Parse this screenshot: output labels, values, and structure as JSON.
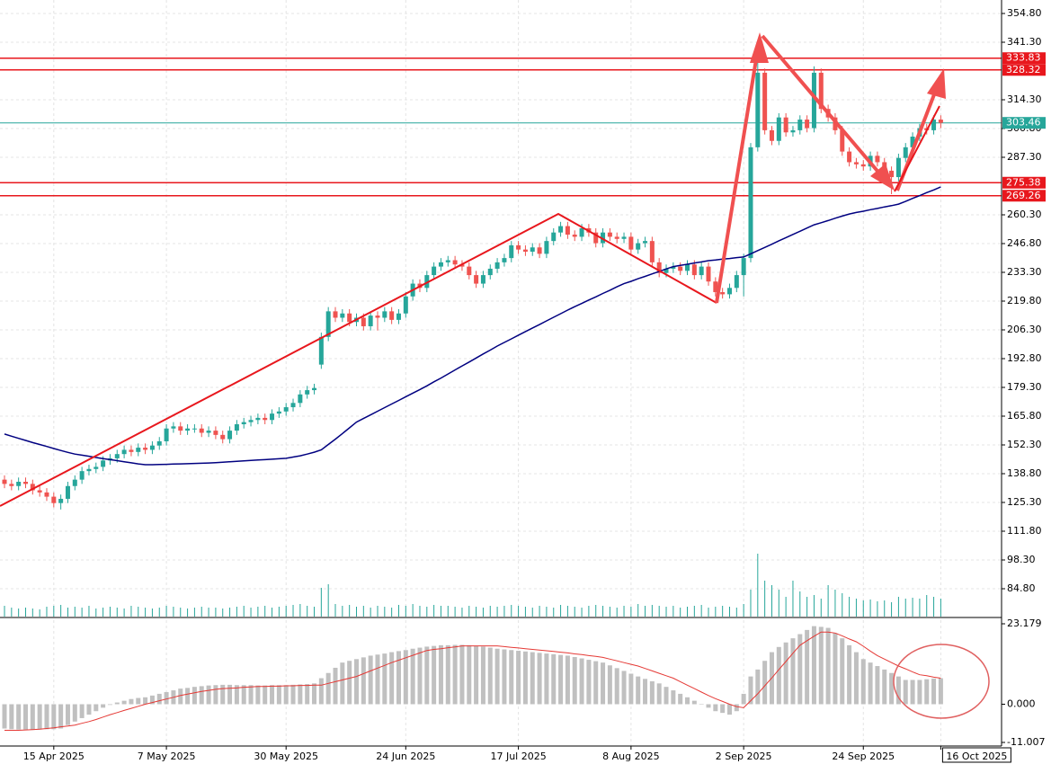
{
  "chart_data": {
    "type": "candlestick",
    "categories": [
      null,
      null,
      null,
      null,
      null,
      null,
      null,
      "15 Apr 2025",
      null,
      null,
      null,
      null,
      null,
      null,
      null,
      null,
      null,
      null,
      null,
      null,
      null,
      null,
      null,
      "7 May 2025",
      null,
      null,
      null,
      null,
      null,
      null,
      null,
      null,
      null,
      null,
      null,
      null,
      null,
      null,
      null,
      null,
      "30 May 2025",
      null,
      null,
      null,
      null,
      null,
      null,
      null,
      null,
      null,
      null,
      null,
      null,
      null,
      null,
      null,
      null,
      "24 Jun 2025",
      null,
      null,
      null,
      null,
      null,
      null,
      null,
      null,
      null,
      null,
      null,
      null,
      null,
      null,
      null,
      "17 Jul 2025",
      null,
      null,
      null,
      null,
      null,
      null,
      null,
      null,
      null,
      null,
      null,
      null,
      null,
      null,
      null,
      "8 Aug 2025",
      null,
      null,
      null,
      null,
      null,
      null,
      null,
      null,
      null,
      null,
      null,
      null,
      null,
      null,
      null,
      "2 Sep 2025",
      null,
      null,
      null,
      null,
      null,
      null,
      null,
      null,
      null,
      null,
      null,
      null,
      null,
      null,
      null,
      null,
      "24 Sep 2025",
      null,
      null,
      null,
      null,
      null,
      null,
      null,
      null,
      null,
      null,
      "16 Oct 2025"
    ],
    "open": [
      136,
      134,
      133,
      135,
      134,
      131,
      130,
      128,
      125,
      127,
      133,
      136,
      140,
      141,
      142,
      145,
      146,
      148,
      150,
      149,
      151,
      150,
      152,
      154,
      160,
      161,
      159,
      160,
      160,
      158,
      159,
      157,
      155,
      159,
      162,
      163,
      164,
      165,
      164,
      167,
      168,
      170,
      172,
      176,
      178,
      190,
      203,
      215,
      212,
      214,
      210,
      212,
      208,
      213,
      212,
      215,
      211,
      214,
      222,
      228,
      226,
      232,
      236,
      238,
      239,
      237,
      236,
      232,
      228,
      232,
      235,
      238,
      240,
      246,
      244,
      243,
      245,
      242,
      248,
      252,
      255,
      251,
      250,
      254,
      252,
      247,
      252,
      250,
      249,
      250,
      244,
      247,
      248,
      238,
      233,
      235,
      236,
      234,
      237,
      232,
      236,
      229,
      224,
      223,
      226,
      232,
      240,
      292,
      327,
      300,
      295,
      306,
      299,
      300,
      305,
      301,
      327,
      310,
      306,
      300,
      290,
      285,
      284,
      283,
      288,
      285,
      281,
      278,
      287,
      292,
      297,
      301,
      300,
      305
    ],
    "high": [
      138,
      136,
      137,
      137,
      136,
      133,
      132,
      130,
      129,
      135,
      138,
      142,
      143,
      144,
      147,
      148,
      150,
      152,
      152,
      153,
      153,
      154,
      156,
      162,
      163,
      163,
      162,
      162,
      162,
      161,
      161,
      159,
      161,
      164,
      165,
      166,
      167,
      167,
      169,
      170,
      172,
      174,
      178,
      180,
      181,
      205,
      217,
      217,
      216,
      216,
      214,
      214,
      215,
      215,
      217,
      217,
      216,
      224,
      230,
      230,
      234,
      238,
      240,
      241,
      241,
      239,
      238,
      234,
      234,
      237,
      240,
      242,
      248,
      248,
      246,
      247,
      247,
      250,
      254,
      257,
      257,
      253,
      256,
      256,
      254,
      254,
      254,
      252,
      252,
      252,
      249,
      250,
      250,
      240,
      237,
      238,
      238,
      239,
      239,
      238,
      238,
      231,
      226,
      228,
      234,
      242,
      294,
      342,
      329,
      302,
      308,
      308,
      302,
      307,
      307,
      330,
      329,
      312,
      308,
      302,
      292,
      287,
      286,
      290,
      290,
      287,
      283,
      289,
      294,
      299,
      303,
      303,
      307,
      307
    ],
    "low": [
      132,
      131,
      131,
      132,
      129,
      128,
      126,
      123,
      122,
      125,
      131,
      134,
      138,
      139,
      140,
      143,
      144,
      146,
      147,
      147,
      148,
      148,
      150,
      152,
      158,
      157,
      157,
      158,
      156,
      156,
      155,
      153,
      153,
      157,
      160,
      161,
      162,
      162,
      162,
      165,
      166,
      168,
      170,
      174,
      176,
      188,
      201,
      210,
      210,
      208,
      208,
      206,
      206,
      206,
      210,
      209,
      209,
      212,
      220,
      224,
      224,
      230,
      234,
      236,
      235,
      234,
      230,
      226,
      226,
      230,
      233,
      236,
      238,
      242,
      241,
      241,
      240,
      240,
      246,
      250,
      249,
      248,
      248,
      250,
      245,
      245,
      248,
      247,
      247,
      242,
      242,
      245,
      236,
      231,
      231,
      233,
      232,
      232,
      230,
      230,
      227,
      222,
      221,
      221,
      224,
      222,
      238,
      290,
      298,
      293,
      293,
      297,
      297,
      298,
      299,
      299,
      308,
      304,
      298,
      288,
      283,
      282,
      281,
      281,
      283,
      279,
      270,
      276,
      285,
      290,
      295,
      298,
      298,
      301
    ],
    "close": [
      134,
      133,
      135,
      134,
      131,
      130,
      128,
      125,
      127,
      133,
      136,
      140,
      141,
      142,
      145,
      146,
      148,
      150,
      149,
      151,
      150,
      152,
      154,
      160,
      161,
      159,
      160,
      160,
      158,
      159,
      157,
      155,
      159,
      162,
      163,
      164,
      165,
      164,
      167,
      168,
      170,
      172,
      176,
      178,
      179,
      203,
      215,
      212,
      214,
      210,
      212,
      208,
      213,
      212,
      215,
      211,
      214,
      222,
      228,
      226,
      232,
      236,
      238,
      239,
      237,
      236,
      232,
      228,
      232,
      235,
      238,
      240,
      246,
      244,
      243,
      245,
      242,
      248,
      252,
      255,
      251,
      250,
      254,
      252,
      247,
      252,
      250,
      249,
      250,
      244,
      247,
      248,
      238,
      233,
      235,
      236,
      234,
      237,
      232,
      236,
      229,
      224,
      223,
      226,
      232,
      240,
      292,
      327,
      300,
      295,
      306,
      299,
      300,
      305,
      301,
      327,
      310,
      306,
      300,
      290,
      285,
      284,
      283,
      288,
      285,
      281,
      278,
      287,
      292,
      297,
      301,
      300,
      305,
      303.46
    ],
    "up_color": "#26a69a",
    "down_color": "#ef5350",
    "ylim": [
      84.8,
      354.8
    ],
    "yticks": [
      {
        "value": 354.8,
        "label": "354.80"
      },
      {
        "value": 341.3,
        "label": "341.30"
      },
      {
        "value": 314.3,
        "label": "314.30"
      },
      {
        "value": 300.8,
        "label": "300.80"
      },
      {
        "value": 287.3,
        "label": "287.30"
      },
      {
        "value": 260.3,
        "label": "260.30"
      },
      {
        "value": 246.8,
        "label": "246.80"
      },
      {
        "value": 233.3,
        "label": "233.30"
      },
      {
        "value": 219.8,
        "label": "219.80"
      },
      {
        "value": 206.3,
        "label": "206.30"
      },
      {
        "value": 192.8,
        "label": "192.80"
      },
      {
        "value": 179.3,
        "label": "179.30"
      },
      {
        "value": 165.8,
        "label": "165.80"
      },
      {
        "value": 152.3,
        "label": "152.30"
      },
      {
        "value": 138.8,
        "label": "138.80"
      },
      {
        "value": 125.3,
        "label": "125.30"
      },
      {
        "value": 111.8,
        "label": "111.80"
      },
      {
        "value": 98.3,
        "label": "98.30"
      },
      {
        "value": 84.8,
        "label": "84.80"
      }
    ],
    "grid": true,
    "levels": [
      {
        "value": 333.83,
        "color": "#e8171d"
      },
      {
        "value": 328.32,
        "color": "#e8171d"
      },
      {
        "value": 303.46,
        "color": "#26a69a"
      },
      {
        "value": 275.38,
        "color": "#e8171d"
      },
      {
        "value": 269.26,
        "color": "#e8171d"
      }
    ],
    "volume": {
      "color": "#26a69a",
      "values": [
        12,
        10,
        9,
        10,
        9,
        8,
        11,
        12,
        13,
        10,
        11,
        10,
        12,
        9,
        10,
        11,
        10,
        9,
        12,
        11,
        10,
        9,
        10,
        12,
        11,
        10,
        9,
        10,
        11,
        10,
        10,
        9,
        10,
        11,
        12,
        10,
        11,
        12,
        10,
        11,
        12,
        13,
        14,
        12,
        11,
        32,
        36,
        14,
        12,
        13,
        11,
        12,
        10,
        12,
        11,
        10,
        13,
        12,
        14,
        12,
        11,
        13,
        12,
        12,
        11,
        10,
        12,
        11,
        10,
        12,
        11,
        12,
        13,
        12,
        11,
        10,
        12,
        11,
        10,
        13,
        12,
        11,
        10,
        12,
        13,
        12,
        11,
        10,
        12,
        11,
        14,
        12,
        13,
        12,
        11,
        12,
        10,
        11,
        12,
        13,
        10,
        11,
        12,
        11,
        10,
        14,
        30,
        70,
        40,
        35,
        30,
        22,
        40,
        28,
        22,
        24,
        20,
        35,
        30,
        26,
        22,
        20,
        18,
        19,
        17,
        18,
        16,
        22,
        20,
        21,
        20,
        24,
        22,
        20
      ]
    },
    "ma": {
      "color": "#000080",
      "values": [
        157.4,
        156.4,
        155.4,
        154.4,
        153.4,
        152.5,
        151.6,
        150.6,
        149.7,
        148.8,
        148,
        147.5,
        147,
        146.4,
        145.9,
        145.4,
        144.9,
        144.4,
        143.9,
        143.4,
        143,
        143,
        143.1,
        143.2,
        143.3,
        143.4,
        143.5,
        143.6,
        143.7,
        143.8,
        144,
        144.2,
        144.4,
        144.6,
        144.8,
        145,
        145.2,
        145.4,
        145.6,
        145.8,
        146,
        146.6,
        147.2,
        148,
        148.9,
        150,
        152.5,
        155,
        157.6,
        160.3,
        163,
        164.7,
        166.4,
        168.1,
        169.8,
        171.5,
        173.2,
        174.9,
        176.6,
        178.3,
        180,
        181.9,
        183.7,
        185.6,
        187.5,
        189.4,
        191.2,
        193.1,
        195,
        196.8,
        198.7,
        200.4,
        202.1,
        203.8,
        205.5,
        207.2,
        208.8,
        210.5,
        212.2,
        213.9,
        215.6,
        217.2,
        218.7,
        220.3,
        221.8,
        223.4,
        224.9,
        226.5,
        228,
        229.1,
        230.3,
        231.4,
        232.6,
        233.7,
        234.9,
        236,
        236.6,
        237.1,
        237.7,
        238.2,
        238.8,
        239.1,
        239.5,
        239.8,
        240.2,
        240.5,
        242,
        243.5,
        245,
        246.5,
        248.1,
        249.6,
        251.1,
        252.6,
        254.1,
        255.6,
        256.6,
        257.6,
        258.7,
        259.7,
        260.7,
        261.4,
        262,
        262.7,
        263.3,
        264,
        264.6,
        265.3,
        266.6,
        268,
        269.3,
        270.7,
        272,
        273.4
      ]
    },
    "macd": {
      "ylim": [
        -11.007,
        23.179
      ],
      "yticks": [
        23.179,
        {
          "value": 0,
          "label": "0.000"
        },
        -11.007
      ],
      "histogram": {
        "color": "#c0c0c0",
        "values": [
          -7,
          -7.2,
          -7.3,
          -7.3,
          -7.4,
          -7.3,
          -7.2,
          -7.2,
          -7,
          -6,
          -5,
          -4,
          -3,
          -2,
          -1,
          -0.2,
          0.5,
          1,
          1.5,
          1.8,
          2,
          2.5,
          3,
          3.5,
          4,
          4.5,
          4.7,
          5,
          5.2,
          5.4,
          5.5,
          5.6,
          5.6,
          5.5,
          5.5,
          5.5,
          5.4,
          5.4,
          5.5,
          5.5,
          5.5,
          5.6,
          5.7,
          5.8,
          6,
          7.5,
          9,
          10.5,
          12,
          12.5,
          13,
          13.5,
          14,
          14.3,
          14.6,
          15,
          15.3,
          15.6,
          16,
          16.3,
          16.6,
          16.8,
          17,
          17,
          17.1,
          17.1,
          17,
          16.8,
          16.6,
          16.3,
          16,
          15.8,
          15.6,
          15.4,
          15.2,
          15,
          14.8,
          14.6,
          14.4,
          14.2,
          14,
          13.6,
          13.2,
          12.8,
          12.4,
          12,
          11.2,
          10.4,
          9.6,
          8.8,
          8,
          7.3,
          6.6,
          6,
          5,
          4,
          3,
          2,
          1,
          0,
          -1,
          -2,
          -2.5,
          -3,
          -2,
          3,
          8,
          10,
          12.5,
          15,
          16.5,
          17.8,
          19,
          20.2,
          21.4,
          22.5,
          22.3,
          22,
          20.5,
          19,
          17,
          15,
          13,
          12,
          11,
          10,
          9,
          8,
          7,
          7,
          7,
          7.2,
          7.4,
          7.5
        ]
      },
      "signal": {
        "color": "#e53935",
        "values": [
          -7.5,
          -7.5,
          -7.5,
          -7.4,
          -7.3,
          -7.2,
          -7,
          -6.8,
          -6.5,
          -6.3,
          -6,
          -5.5,
          -5,
          -4.4,
          -3.7,
          -3,
          -2.4,
          -1.8,
          -1.2,
          -0.6,
          0,
          0.5,
          1,
          1.5,
          2,
          2.5,
          2.9,
          3.3,
          3.7,
          4,
          4.3,
          4.5,
          4.6,
          4.7,
          4.9,
          5,
          5.1,
          5.1,
          5.2,
          5.2,
          5.3,
          5.3,
          5.4,
          5.4,
          5.5,
          5.5,
          6,
          6.5,
          7,
          7.5,
          8,
          8.8,
          9.6,
          10.4,
          11.2,
          12,
          12.7,
          13.4,
          14.1,
          14.8,
          15.5,
          15.8,
          16,
          16.3,
          16.5,
          16.8,
          16.8,
          16.8,
          16.8,
          16.8,
          16.8,
          16.6,
          16.4,
          16.2,
          16,
          15.8,
          15.6,
          15.4,
          15.2,
          15,
          14.8,
          14.5,
          14.3,
          14,
          13.8,
          13.5,
          13,
          12.5,
          12,
          11.5,
          11,
          10.3,
          9.6,
          8.9,
          8.2,
          7.5,
          6.5,
          5.5,
          4.5,
          3.5,
          2.5,
          1.6,
          0.8,
          0,
          -0.7,
          -1,
          1,
          3,
          5.3,
          7.6,
          10,
          12.3,
          14.7,
          17,
          18.3,
          19.6,
          20.8,
          20.8,
          20.5,
          19.7,
          18.8,
          18,
          16.7,
          15.3,
          14,
          13,
          12,
          11,
          10.2,
          9.3,
          8.5,
          8.2,
          7.8,
          7.5
        ]
      }
    }
  }
}
